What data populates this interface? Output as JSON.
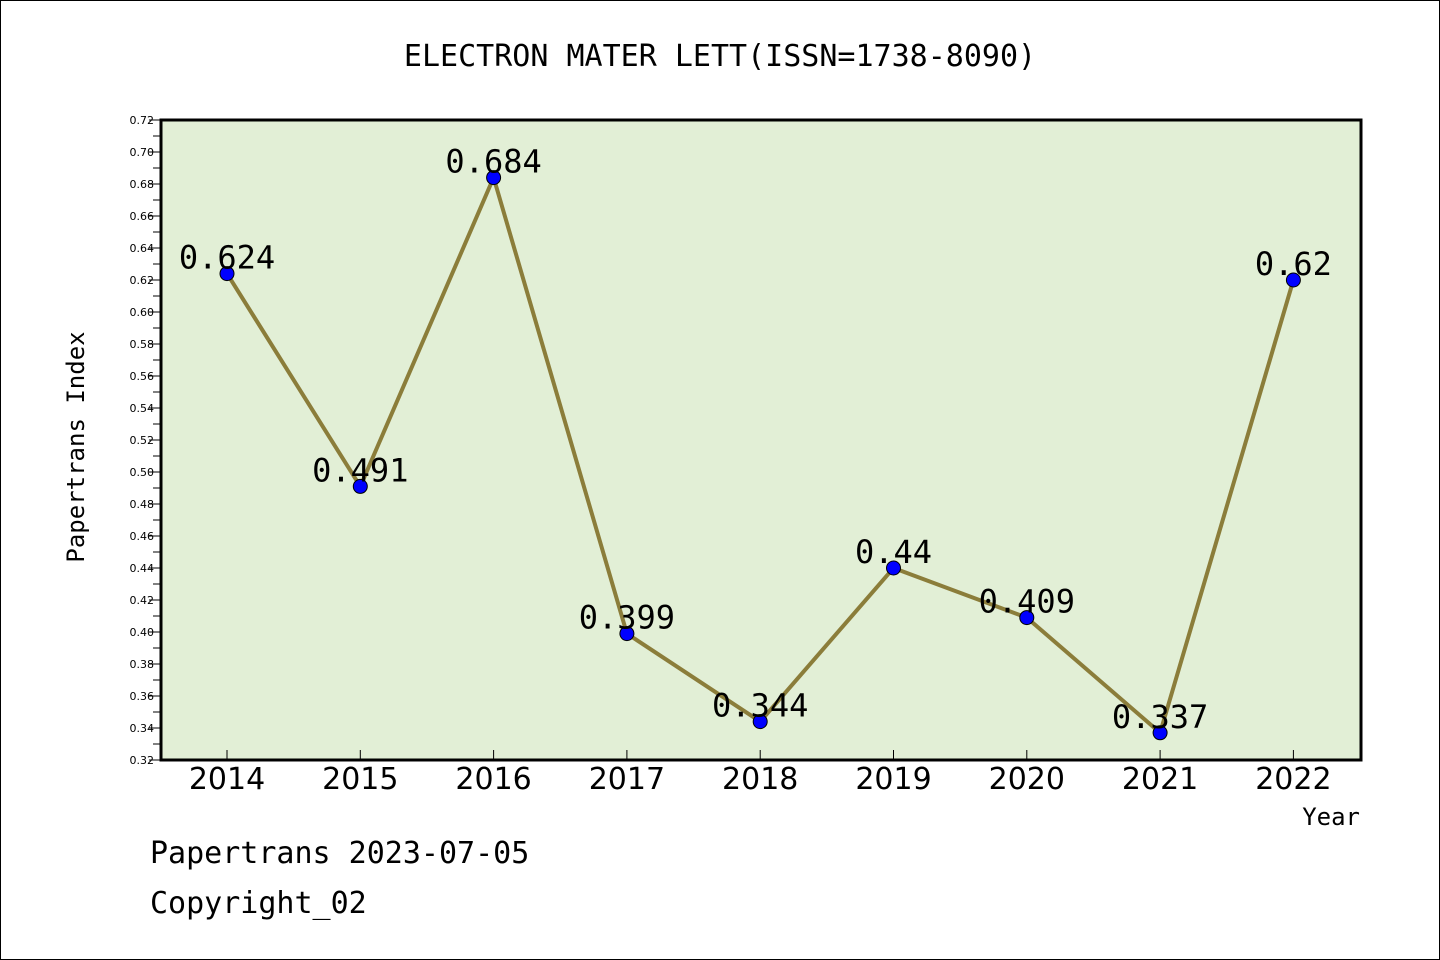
{
  "chart_data": {
    "type": "line",
    "title": "ELECTRON MATER LETT(ISSN=1738-8090)",
    "xlabel": "Year",
    "ylabel": "Papertrans Index",
    "categories": [
      "2014",
      "2015",
      "2016",
      "2017",
      "2018",
      "2019",
      "2020",
      "2021",
      "2022"
    ],
    "values": [
      0.624,
      0.491,
      0.684,
      0.399,
      0.344,
      0.44,
      0.409,
      0.337,
      0.62
    ],
    "data_labels": [
      "0.624",
      "0.491",
      "0.684",
      "0.399",
      "0.344",
      "0.44",
      "0.409",
      "0.337",
      "0.62"
    ],
    "ylim": [
      0.32,
      0.72
    ],
    "yticks": [
      "0.32",
      "0.34",
      "0.36",
      "0.38",
      "0.40",
      "0.42",
      "0.44",
      "0.46",
      "0.48",
      "0.50",
      "0.52",
      "0.54",
      "0.56",
      "0.58",
      "0.60",
      "0.62",
      "0.64",
      "0.66",
      "0.68",
      "0.70",
      "0.72"
    ],
    "grid": false,
    "legend": "none",
    "colors": {
      "plot_background": "#e2efd6",
      "line": "#8b7d3a",
      "marker": "#0000ff"
    }
  },
  "footer": {
    "date_text": "Papertrans 2023-07-05",
    "copyright_text": "Copyright_02"
  }
}
